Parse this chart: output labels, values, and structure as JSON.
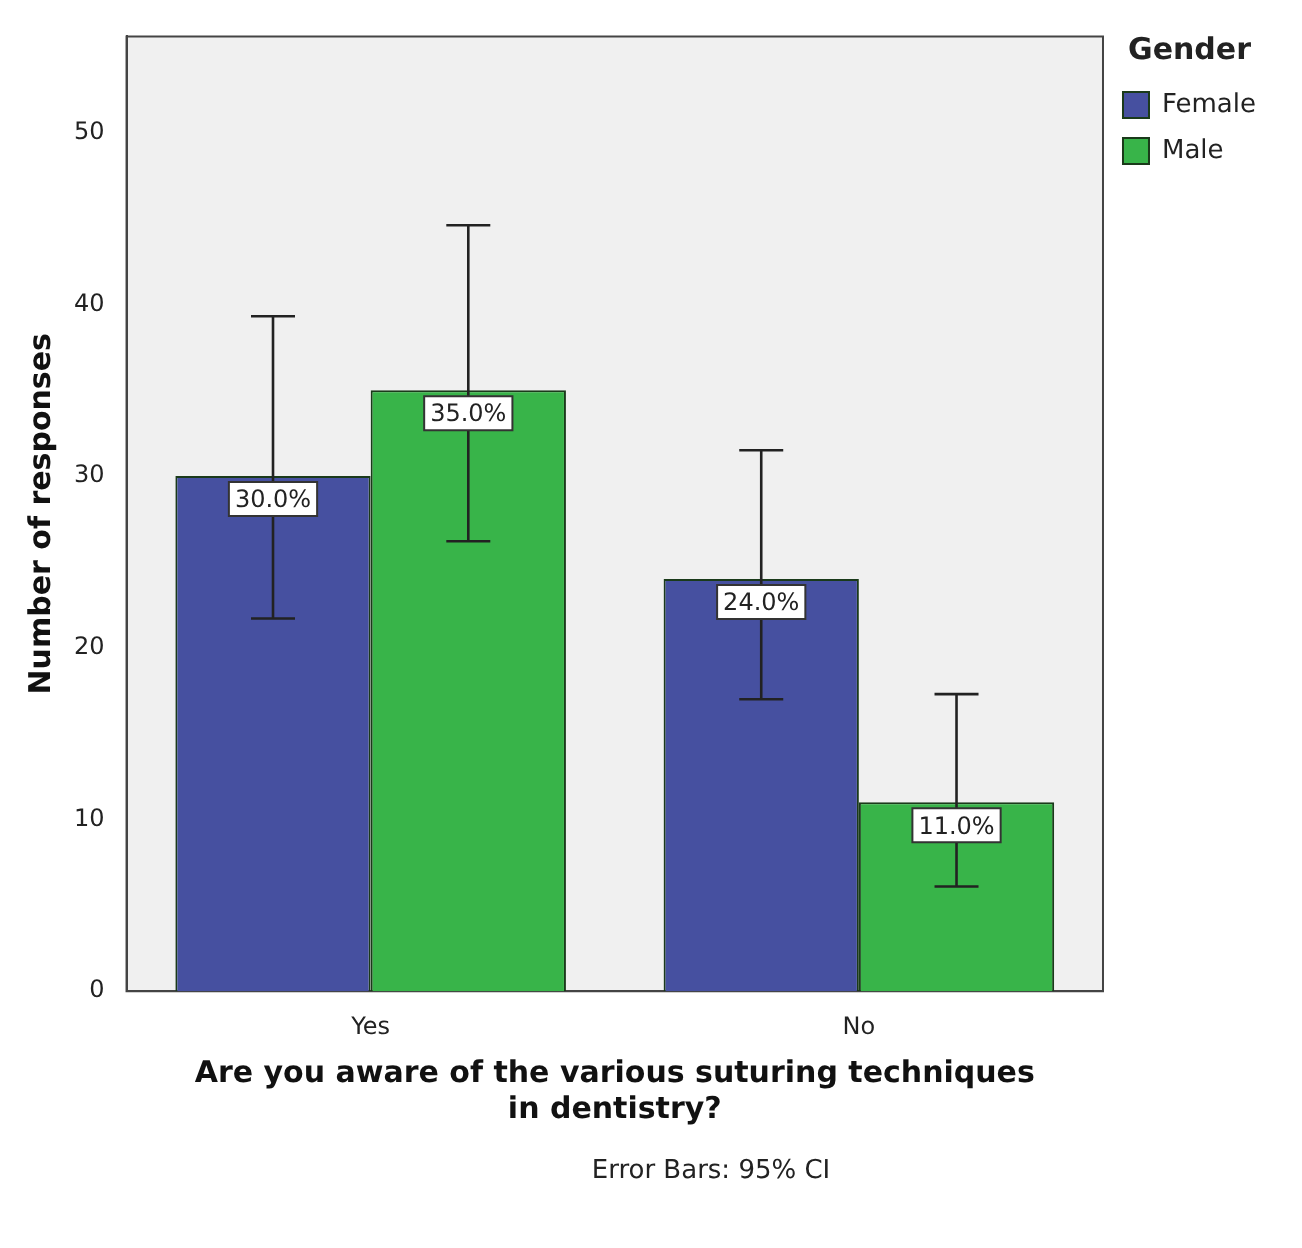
{
  "chart_data": {
    "type": "bar",
    "xlabel": "Are you aware of the various suturing techniques\nin dentistry?",
    "ylabel": "Number of responses",
    "legend_title": "Gender",
    "legend": "top right",
    "grid": false,
    "categories": [
      "Yes",
      "No"
    ],
    "series": [
      {
        "name": "Female",
        "color": "#4650a0",
        "values": [
          30,
          24
        ],
        "errors": [
          [
            21.7,
            39.3
          ],
          [
            17.0,
            31.5
          ]
        ],
        "value_labels": [
          "30.0%",
          "24.0%"
        ]
      },
      {
        "name": "Male",
        "color": "#38b449",
        "values": [
          35,
          11
        ],
        "errors": [
          [
            26.2,
            44.6
          ],
          [
            6.1,
            17.3
          ]
        ],
        "value_labels": [
          "35.0%",
          "11.0%"
        ]
      }
    ],
    "ylim": [
      0,
      55.6
    ],
    "yticks": [
      0,
      10,
      20,
      30,
      40,
      50
    ],
    "annotations": [
      "Error Bars: 95% CI"
    ]
  }
}
